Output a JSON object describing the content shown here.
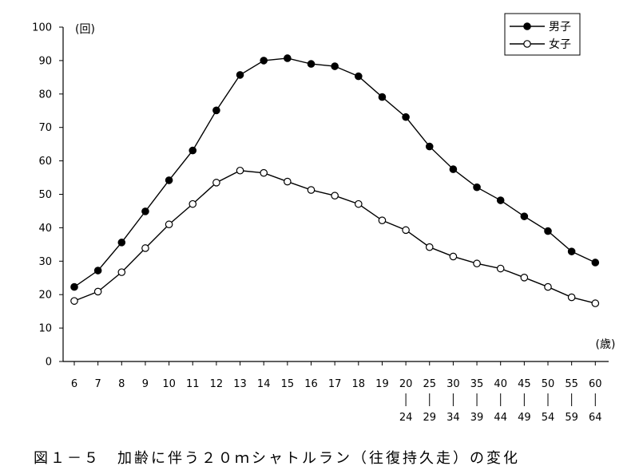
{
  "caption": "図１－５　加齢に伴う２０ｍシャトルラン（往復持久走）の変化",
  "chart_data": {
    "type": "line",
    "title": "",
    "ylabel": "(回)",
    "xlabel": "(歳)",
    "ylim": [
      0,
      100
    ],
    "yticks": [
      "0",
      "10",
      "20",
      "30",
      "40",
      "50",
      "60",
      "70",
      "80",
      "90",
      "100"
    ],
    "categories": [
      {
        "top": "6",
        "bottom": ""
      },
      {
        "top": "7",
        "bottom": ""
      },
      {
        "top": "8",
        "bottom": ""
      },
      {
        "top": "9",
        "bottom": ""
      },
      {
        "top": "10",
        "bottom": ""
      },
      {
        "top": "11",
        "bottom": ""
      },
      {
        "top": "12",
        "bottom": ""
      },
      {
        "top": "13",
        "bottom": ""
      },
      {
        "top": "14",
        "bottom": ""
      },
      {
        "top": "15",
        "bottom": ""
      },
      {
        "top": "16",
        "bottom": ""
      },
      {
        "top": "17",
        "bottom": ""
      },
      {
        "top": "18",
        "bottom": ""
      },
      {
        "top": "19",
        "bottom": ""
      },
      {
        "top": "20",
        "bottom": "24"
      },
      {
        "top": "25",
        "bottom": "29"
      },
      {
        "top": "30",
        "bottom": "34"
      },
      {
        "top": "35",
        "bottom": "39"
      },
      {
        "top": "40",
        "bottom": "44"
      },
      {
        "top": "45",
        "bottom": "49"
      },
      {
        "top": "50",
        "bottom": "54"
      },
      {
        "top": "55",
        "bottom": "59"
      },
      {
        "top": "60",
        "bottom": "64"
      }
    ],
    "series": [
      {
        "name": "男子",
        "marker": "filled",
        "values": [
          22.3,
          27.2,
          35.6,
          44.9,
          54.2,
          63.1,
          75.1,
          85.7,
          90.0,
          90.7,
          89.0,
          88.3,
          85.3,
          79.1,
          73.1,
          64.3,
          57.5,
          52.1,
          48.2,
          43.4,
          39.0,
          32.9,
          29.6
        ]
      },
      {
        "name": "女子",
        "marker": "open",
        "values": [
          18.1,
          20.9,
          26.7,
          33.9,
          41.0,
          47.1,
          53.5,
          57.1,
          56.4,
          53.8,
          51.3,
          49.6,
          47.1,
          42.2,
          39.3,
          34.2,
          31.4,
          29.3,
          27.8,
          25.1,
          22.3,
          19.2,
          17.4
        ]
      }
    ],
    "legend_position": "top-right",
    "grid": false
  }
}
